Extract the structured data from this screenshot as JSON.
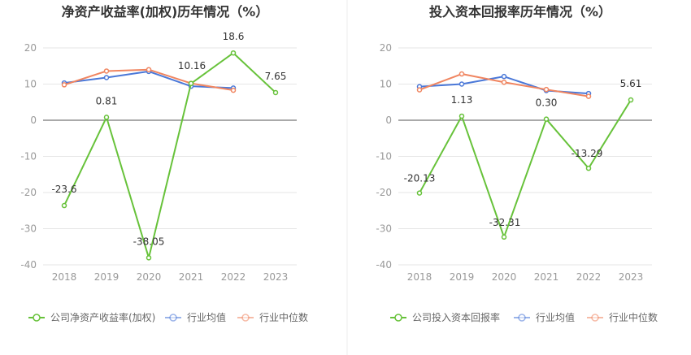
{
  "colors": {
    "company": "#67c23a",
    "industry_avg": "#4a78d8",
    "industry_median": "#f08560",
    "axis_label": "#999999",
    "grid": "#e6e6e6",
    "title": "#333333",
    "value_label": "#333333"
  },
  "chart_data": [
    {
      "type": "line",
      "title": "净资产收益率(加权)历年情况（%）",
      "categories": [
        "2018",
        "2019",
        "2020",
        "2021",
        "2022",
        "2023"
      ],
      "ylim": [
        -40,
        20
      ],
      "yticks": [
        20,
        10,
        0,
        -10,
        -20,
        -30,
        -40
      ],
      "grid": true,
      "legend_position": "bottom-left",
      "series": [
        {
          "name": "公司净资产收益率(加权)",
          "key": "company",
          "values": [
            -23.6,
            0.81,
            -38.05,
            10.16,
            18.6,
            7.65
          ],
          "labels": [
            "-23.6",
            "0.81",
            "-38.05",
            "10.16",
            "18.6",
            "7.65"
          ]
        },
        {
          "name": "行业均值",
          "key": "industry_avg",
          "values": [
            10.3,
            11.8,
            13.5,
            9.4,
            8.9,
            null
          ]
        },
        {
          "name": "行业中位数",
          "key": "industry_median",
          "values": [
            9.8,
            13.6,
            14.0,
            10.2,
            8.3,
            null
          ]
        }
      ]
    },
    {
      "type": "line",
      "title": "投入资本回报率历年情况（%）",
      "categories": [
        "2018",
        "2019",
        "2020",
        "2021",
        "2022",
        "2023"
      ],
      "ylim": [
        -40,
        20
      ],
      "yticks": [
        20,
        10,
        0,
        -10,
        -20,
        -30,
        -40
      ],
      "grid": true,
      "legend_position": "bottom-left",
      "series": [
        {
          "name": "公司投入资本回报率",
          "key": "company",
          "values": [
            -20.13,
            1.13,
            -32.31,
            0.3,
            -13.29,
            5.61
          ],
          "labels": [
            "-20.13",
            "1.13",
            "-32.31",
            "0.30",
            "-13.29",
            "5.61"
          ]
        },
        {
          "name": "行业均值",
          "key": "industry_avg",
          "values": [
            9.3,
            10.0,
            12.1,
            8.2,
            7.4,
            null
          ]
        },
        {
          "name": "行业中位数",
          "key": "industry_median",
          "values": [
            8.4,
            12.8,
            10.5,
            8.5,
            6.6,
            null
          ]
        }
      ]
    }
  ]
}
